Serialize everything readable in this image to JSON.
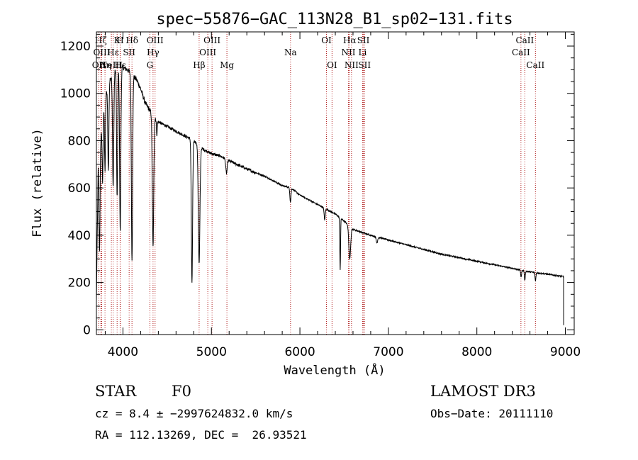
{
  "chart_data": {
    "type": "line",
    "title": "spec−55876−GAC_113N28_B1_sp02−131.fits",
    "xlabel": "Wavelength (Å)",
    "ylabel": "Flux (relative)",
    "xlim": [
      3700,
      9100
    ],
    "ylim": [
      -20,
      1260
    ],
    "xticks": [
      4000,
      5000,
      6000,
      7000,
      8000,
      9000
    ],
    "yticks": [
      0,
      200,
      400,
      600,
      800,
      1000,
      1200
    ],
    "grid": false,
    "line_color": "#000000",
    "marker_color": "#b22222",
    "continuum": [
      [
        3700,
        120
      ],
      [
        3720,
        700
      ],
      [
        3740,
        780
      ],
      [
        3760,
        850
      ],
      [
        3780,
        930
      ],
      [
        3800,
        980
      ],
      [
        3850,
        1060
      ],
      [
        3900,
        1090
      ],
      [
        3950,
        1120
      ],
      [
        4000,
        1110
      ],
      [
        4050,
        1100
      ],
      [
        4100,
        1080
      ],
      [
        4150,
        1060
      ],
      [
        4200,
        1020
      ],
      [
        4250,
        960
      ],
      [
        4300,
        930
      ],
      [
        4350,
        905
      ],
      [
        4400,
        880
      ],
      [
        4500,
        860
      ],
      [
        4600,
        840
      ],
      [
        4700,
        820
      ],
      [
        4800,
        800
      ],
      [
        4900,
        765
      ],
      [
        5000,
        745
      ],
      [
        5100,
        735
      ],
      [
        5200,
        715
      ],
      [
        5400,
        680
      ],
      [
        5600,
        650
      ],
      [
        5800,
        610
      ],
      [
        5900,
        600
      ],
      [
        6000,
        570
      ],
      [
        6200,
        530
      ],
      [
        6400,
        490
      ],
      [
        6500,
        460
      ],
      [
        6600,
        425
      ],
      [
        6800,
        400
      ],
      [
        7000,
        380
      ],
      [
        7200,
        360
      ],
      [
        7400,
        340
      ],
      [
        7600,
        320
      ],
      [
        7800,
        305
      ],
      [
        8000,
        290
      ],
      [
        8200,
        275
      ],
      [
        8400,
        260
      ],
      [
        8600,
        245
      ],
      [
        8800,
        235
      ],
      [
        8980,
        225
      ]
    ],
    "absorption_lines": [
      {
        "center": 3735,
        "depth": 430,
        "width": 6
      },
      {
        "center": 3770,
        "depth": 270,
        "width": 5
      },
      {
        "center": 3797,
        "depth": 300,
        "width": 5
      },
      {
        "center": 3835,
        "depth": 360,
        "width": 6
      },
      {
        "center": 3889,
        "depth": 480,
        "width": 7
      },
      {
        "center": 3934,
        "depth": 560,
        "width": 6
      },
      {
        "center": 3969,
        "depth": 700,
        "width": 7
      },
      {
        "center": 4102,
        "depth": 780,
        "width": 7
      },
      {
        "center": 4340,
        "depth": 560,
        "width": 8
      },
      {
        "center": 4383,
        "depth": 60,
        "width": 5
      },
      {
        "center": 4780,
        "depth": 610,
        "width": 7
      },
      {
        "center": 4861,
        "depth": 500,
        "width": 9
      },
      {
        "center": 5170,
        "depth": 60,
        "width": 8
      },
      {
        "center": 5893,
        "depth": 60,
        "width": 6
      },
      {
        "center": 6280,
        "depth": 50,
        "width": 6
      },
      {
        "center": 6455,
        "depth": 220,
        "width": 4
      },
      {
        "center": 6563,
        "depth": 140,
        "width": 10
      },
      {
        "center": 6870,
        "depth": 25,
        "width": 8
      },
      {
        "center": 8500,
        "depth": 30,
        "width": 5
      },
      {
        "center": 8542,
        "depth": 40,
        "width": 5
      },
      {
        "center": 8662,
        "depth": 35,
        "width": 5
      }
    ],
    "line_markers": [
      {
        "label": "OII",
        "wavelength": 3727,
        "row": 3
      },
      {
        "label": "Hζ",
        "wavelength": 3750,
        "row": 1
      },
      {
        "label": "OIII",
        "wavelength": 3760,
        "row": 2
      },
      {
        "label": "Hη",
        "wavelength": 3797,
        "row": 3
      },
      {
        "label": "NeIII",
        "wavelength": 3869,
        "row": 3
      },
      {
        "label": "Hε",
        "wavelength": 3889,
        "row": 2
      },
      {
        "label": "Hε",
        "wavelength": 3970,
        "row": 3
      },
      {
        "label": "K",
        "wavelength": 3934,
        "row": 1
      },
      {
        "label": "H",
        "wavelength": 3968,
        "row": 1
      },
      {
        "label": "SII",
        "wavelength": 4070,
        "row": 2
      },
      {
        "label": "Hδ",
        "wavelength": 4102,
        "row": 1
      },
      {
        "label": "OIII",
        "wavelength": 4363,
        "row": 1
      },
      {
        "label": "Hγ",
        "wavelength": 4340,
        "row": 2
      },
      {
        "label": "G",
        "wavelength": 4305,
        "row": 3
      },
      {
        "label": "Hβ",
        "wavelength": 4861,
        "row": 3
      },
      {
        "label": "OIII",
        "wavelength": 4959,
        "row": 2
      },
      {
        "label": "OIII",
        "wavelength": 5007,
        "row": 1
      },
      {
        "label": "Mg",
        "wavelength": 5175,
        "row": 3
      },
      {
        "label": "Na",
        "wavelength": 5894,
        "row": 2
      },
      {
        "label": "OI",
        "wavelength": 6300,
        "row": 1
      },
      {
        "label": "OI",
        "wavelength": 6363,
        "row": 3
      },
      {
        "label": "NII",
        "wavelength": 6548,
        "row": 2
      },
      {
        "label": "Hα",
        "wavelength": 6563,
        "row": 1
      },
      {
        "label": "NII",
        "wavelength": 6583,
        "row": 3
      },
      {
        "label": "SII",
        "wavelength": 6717,
        "row": 1
      },
      {
        "label": "Li",
        "wavelength": 6708,
        "row": 2
      },
      {
        "label": "SII",
        "wavelength": 6731,
        "row": 3
      },
      {
        "label": "CaII",
        "wavelength": 8498,
        "row": 2
      },
      {
        "label": "CaII",
        "wavelength": 8542,
        "row": 1
      },
      {
        "label": "CaII",
        "wavelength": 8662,
        "row": 3
      }
    ]
  },
  "info": {
    "classification": "STAR",
    "subclass": "F0",
    "survey": "LAMOST DR3",
    "cz_line": "cz = 8.4 ± −2997624832.0 km/s",
    "obs_date": "Obs−Date: 20111110",
    "coords": "RA = 112.13269, DEC =  26.93521"
  }
}
